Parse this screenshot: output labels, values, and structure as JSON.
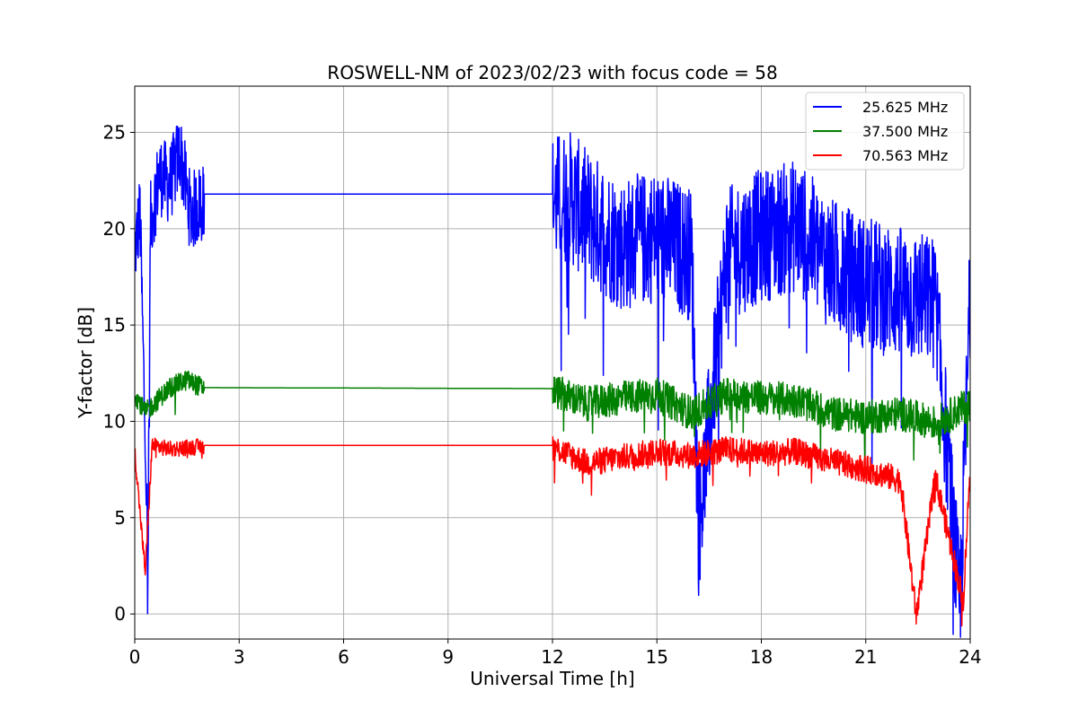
{
  "chart_data": {
    "type": "line",
    "title": "ROSWELL-NM of 2023/02/23 with focus code = 58",
    "xlabel": "Universal Time [h]",
    "ylabel": "Y-factor [dB]",
    "xlim": [
      0,
      24
    ],
    "ylim": [
      -1.3,
      27.4
    ],
    "xticks": [
      0,
      3,
      6,
      9,
      12,
      15,
      18,
      21,
      24
    ],
    "yticks": [
      0,
      5,
      10,
      15,
      20,
      25
    ],
    "grid": true,
    "legend_position": "top-right",
    "series": [
      {
        "name": "25.625 MHz",
        "color": "#0000ff",
        "baseline": 21.8,
        "gap_start": 2.0,
        "gap_end": 12.0,
        "segments": [
          {
            "x": 0.0,
            "y": 19.0
          },
          {
            "x": 0.15,
            "y": 21.0
          },
          {
            "x": 0.35,
            "y": 5.5
          },
          {
            "x": 0.37,
            "y": 0.0
          },
          {
            "x": 0.45,
            "y": 20.5
          },
          {
            "x": 0.7,
            "y": 23.0
          },
          {
            "x": 1.0,
            "y": 22.5
          },
          {
            "x": 1.3,
            "y": 24.2
          },
          {
            "x": 1.6,
            "y": 21.0
          },
          {
            "x": 2.0,
            "y": 21.8
          },
          {
            "x": 12.0,
            "y": 21.8
          },
          {
            "x": 12.5,
            "y": 22.0
          },
          {
            "x": 13.0,
            "y": 21.0
          },
          {
            "x": 14.0,
            "y": 19.5
          },
          {
            "x": 15.0,
            "y": 20.0
          },
          {
            "x": 16.0,
            "y": 19.0
          },
          {
            "x": 16.2,
            "y": 4.7
          },
          {
            "x": 17.0,
            "y": 19.0
          },
          {
            "x": 18.0,
            "y": 20.0
          },
          {
            "x": 19.0,
            "y": 20.5
          },
          {
            "x": 20.0,
            "y": 18.5
          },
          {
            "x": 21.0,
            "y": 17.5
          },
          {
            "x": 22.0,
            "y": 17.0
          },
          {
            "x": 23.0,
            "y": 16.5
          },
          {
            "x": 23.7,
            "y": 0.5
          },
          {
            "x": 24.0,
            "y": 17.0
          }
        ],
        "noise_amplitude": 3.5
      },
      {
        "name": "37.500 MHz",
        "color": "#008000",
        "baseline": 11.75,
        "gap_start": 2.0,
        "gap_end": 12.0,
        "segments": [
          {
            "x": 0.0,
            "y": 11.5
          },
          {
            "x": 0.3,
            "y": 10.5
          },
          {
            "x": 1.0,
            "y": 11.8
          },
          {
            "x": 1.5,
            "y": 12.2
          },
          {
            "x": 2.0,
            "y": 11.75
          },
          {
            "x": 12.0,
            "y": 11.7
          },
          {
            "x": 13.0,
            "y": 11.0
          },
          {
            "x": 14.0,
            "y": 11.3
          },
          {
            "x": 15.0,
            "y": 11.5
          },
          {
            "x": 16.0,
            "y": 10.5
          },
          {
            "x": 17.0,
            "y": 11.5
          },
          {
            "x": 18.0,
            "y": 11.3
          },
          {
            "x": 19.0,
            "y": 11.2
          },
          {
            "x": 20.0,
            "y": 10.5
          },
          {
            "x": 21.0,
            "y": 10.3
          },
          {
            "x": 22.0,
            "y": 10.5
          },
          {
            "x": 23.0,
            "y": 10.0
          },
          {
            "x": 24.0,
            "y": 11.0
          }
        ],
        "noise_amplitude": 0.9
      },
      {
        "name": "70.563 MHz",
        "color": "#ff0000",
        "baseline": 8.75,
        "gap_start": 2.0,
        "gap_end": 12.0,
        "segments": [
          {
            "x": 0.0,
            "y": 8.5
          },
          {
            "x": 0.3,
            "y": 2.2
          },
          {
            "x": 0.5,
            "y": 8.8
          },
          {
            "x": 1.0,
            "y": 8.6
          },
          {
            "x": 2.0,
            "y": 8.75
          },
          {
            "x": 12.0,
            "y": 8.75
          },
          {
            "x": 13.0,
            "y": 7.9
          },
          {
            "x": 14.0,
            "y": 8.2
          },
          {
            "x": 15.0,
            "y": 8.5
          },
          {
            "x": 16.0,
            "y": 8.3
          },
          {
            "x": 17.0,
            "y": 8.6
          },
          {
            "x": 18.0,
            "y": 8.4
          },
          {
            "x": 19.0,
            "y": 8.5
          },
          {
            "x": 20.0,
            "y": 8.0
          },
          {
            "x": 21.0,
            "y": 7.6
          },
          {
            "x": 22.0,
            "y": 7.0
          },
          {
            "x": 22.45,
            "y": 0.0
          },
          {
            "x": 23.0,
            "y": 7.2
          },
          {
            "x": 23.8,
            "y": 0.7
          },
          {
            "x": 24.0,
            "y": 7.8
          }
        ],
        "noise_amplitude": 0.7
      }
    ]
  }
}
